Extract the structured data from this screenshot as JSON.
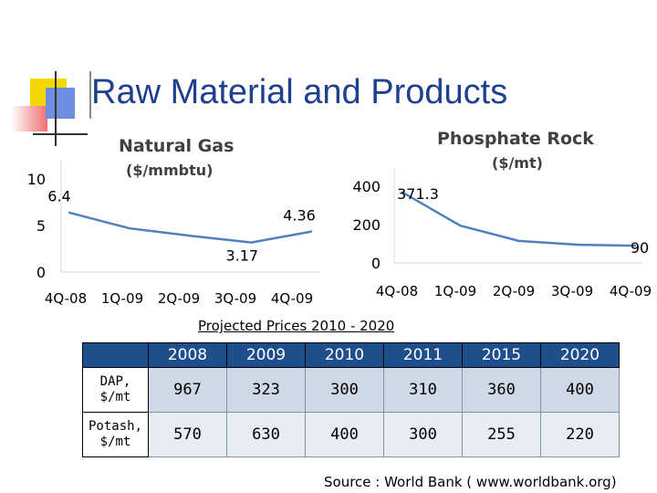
{
  "slide": {
    "title": "Raw Material and Products",
    "table_title": "Projected Prices 2010 - 2020",
    "source": "Source : World Bank ( www.worldbank.org)"
  },
  "chart_data": [
    {
      "type": "line",
      "title": "Natural Gas",
      "subtitle": "($/mmbtu)",
      "categories": [
        "4Q-08",
        "1Q-09",
        "2Q-09",
        "3Q-09",
        "4Q-09"
      ],
      "values": [
        6.4,
        4.7,
        3.9,
        3.17,
        4.36
      ],
      "point_labels": [
        "6.4",
        "",
        "",
        "3.17",
        "4.36"
      ],
      "yticks": [
        "10",
        "5",
        "0"
      ],
      "ylim": [
        0,
        10
      ],
      "color": "#4f81bd"
    },
    {
      "type": "line",
      "title": "Phosphate Rock",
      "subtitle": "($/mt)",
      "categories": [
        "4Q-08",
        "1Q-09",
        "2Q-09",
        "3Q-09",
        "4Q-09"
      ],
      "values": [
        371.3,
        195,
        115,
        95,
        90
      ],
      "point_labels": [
        "371.3",
        "",
        "",
        "",
        "90"
      ],
      "yticks": [
        "400",
        "200",
        "0"
      ],
      "ylim": [
        0,
        400
      ],
      "color": "#4f81bd"
    }
  ],
  "table": {
    "years": [
      "2008",
      "2009",
      "2010",
      "2011",
      "2015",
      "2020"
    ],
    "rows": [
      {
        "label_line1": "DAP,",
        "label_line2": "$/mt",
        "values": [
          "967",
          "323",
          "300",
          "310",
          "360",
          "400"
        ]
      },
      {
        "label_line1": "Potash,",
        "label_line2": "$/mt",
        "values": [
          "570",
          "630",
          "400",
          "300",
          "255",
          "220"
        ]
      }
    ]
  }
}
